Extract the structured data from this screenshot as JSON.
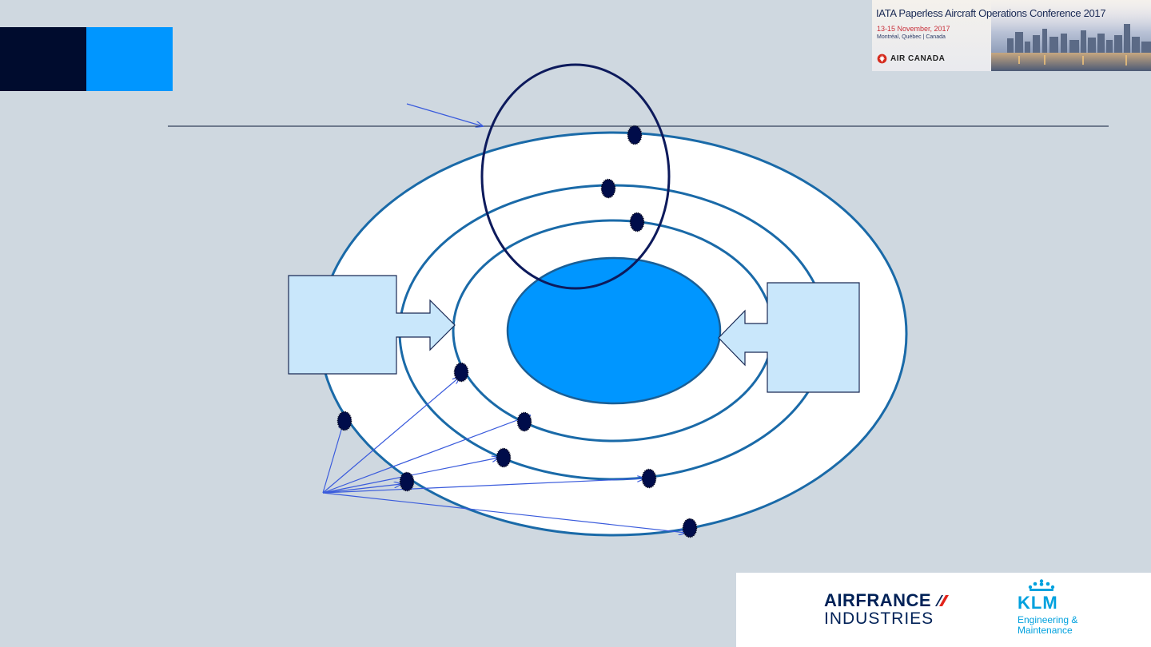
{
  "slide": {
    "accent_colors": {
      "dark": "#000c2e",
      "blue": "#0096ff",
      "background": "#cfd8e0"
    }
  },
  "diagram": {
    "rings": [
      "outer-ring",
      "middle-ring",
      "inner-ring"
    ],
    "core_color": "#0096ff",
    "focus_circle_color": "#0d1a5c",
    "node_color": "#000c4a",
    "pointer_color": "#3a5bdc",
    "box_fill": "#c9e7fb"
  },
  "banner": {
    "title": "IATA Paperless Aircraft Operations Conference 2017",
    "dates": "13-15 November, 2017",
    "location": "Montréal, Québec | Canada",
    "airline": "AIR CANADA",
    "airline_icon": "maple-leaf-icon"
  },
  "logos": {
    "af_name": "AIRFRANCE",
    "af_division": "INDUSTRIES",
    "af_icon": "airfrance-stripe-icon",
    "klm_icon": "klm-crown-icon",
    "klm_name": "KLM",
    "klm_tagline_1": "Engineering &",
    "klm_tagline_2": "Maintenance"
  }
}
